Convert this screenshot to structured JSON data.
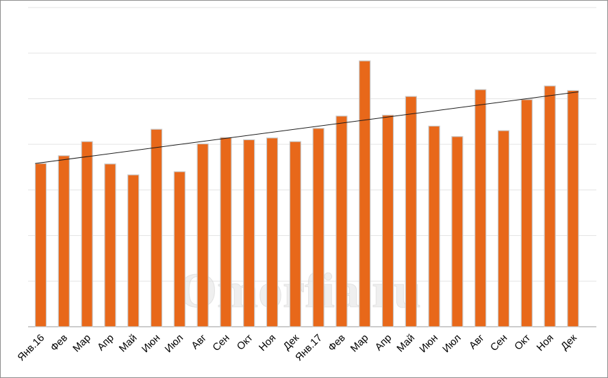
{
  "watermark": "Omorfia.ru",
  "colors": {
    "bar": "#e8681a",
    "bar_outline": "#c9c9c9",
    "trend": "#1a1a1a",
    "grid": "#e3e3e3"
  },
  "chart_data": {
    "type": "bar",
    "title": "",
    "xlabel": "",
    "ylabel": "",
    "ylim": [
      0,
      7
    ],
    "grid": true,
    "y_tick_labels_shown": false,
    "categories": [
      "Янв.16",
      "Фев",
      "Мар",
      "Апр",
      "Май",
      "Июн",
      "Июл",
      "Авг",
      "Сен",
      "Окт",
      "Ноя",
      "Дек",
      "Янв.17",
      "Фев",
      "Мар",
      "Апр",
      "Май",
      "Июн",
      "Июл",
      "Авг",
      "Сен",
      "Окт",
      "Ноя",
      "Дек"
    ],
    "values": [
      3.58,
      3.75,
      4.06,
      3.57,
      3.33,
      4.33,
      3.4,
      4.01,
      4.15,
      4.1,
      4.14,
      4.06,
      4.35,
      4.62,
      5.83,
      4.64,
      5.05,
      4.4,
      4.17,
      5.2,
      4.3,
      4.98,
      5.28,
      5.18
    ],
    "trendline": {
      "type": "linear",
      "start": 3.58,
      "end": 5.15
    }
  }
}
